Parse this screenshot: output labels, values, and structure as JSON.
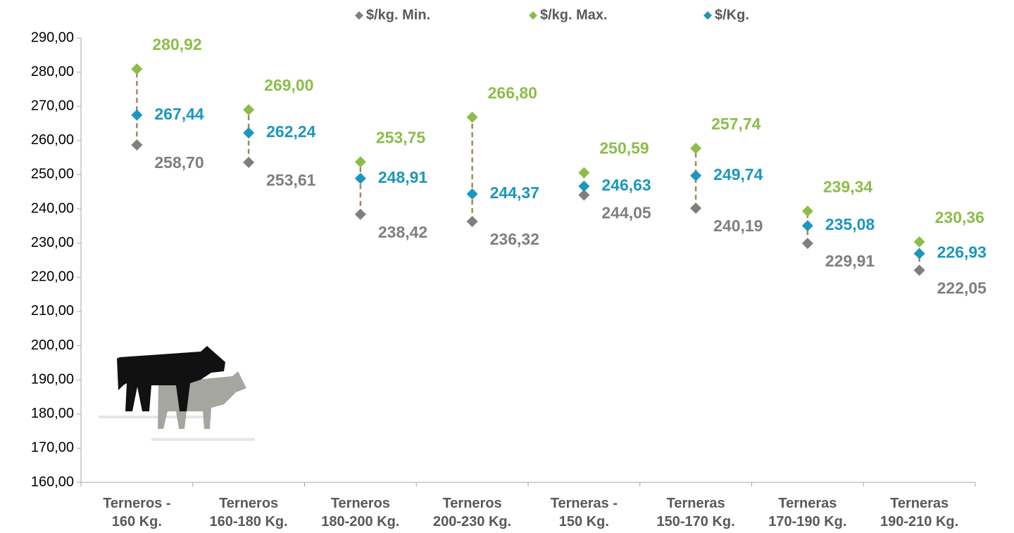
{
  "chart_data": {
    "type": "dot-range",
    "categories": [
      "Terneros -\n160 Kg.",
      "Terneros\n160-180 Kg.",
      "Terneros\n180-200 Kg.",
      "Terneros\n200-230 Kg.",
      "Terneras -\n150 Kg.",
      "Terneras\n150-170 Kg.",
      "Terneras\n170-190 Kg.",
      "Terneras\n190-210 Kg."
    ],
    "series": [
      {
        "name": "$/kg. Min.",
        "color": "#7f7f7f",
        "values": [
          258.7,
          253.61,
          238.42,
          236.32,
          244.05,
          240.19,
          229.91,
          222.05
        ],
        "value_labels": [
          "258,70",
          "253,61",
          "238,42",
          "236,32",
          "244,05",
          "240,19",
          "229,91",
          "222,05"
        ]
      },
      {
        "name": "$/kg. Max.",
        "color": "#8cbd4a",
        "values": [
          280.92,
          269.0,
          253.75,
          266.8,
          250.59,
          257.74,
          239.34,
          230.36
        ],
        "value_labels": [
          "280,92",
          "269,00",
          "253,75",
          "266,80",
          "250,59",
          "257,74",
          "239,34",
          "230,36"
        ]
      },
      {
        "name": "$/Kg.",
        "color": "#1b97bd",
        "values": [
          267.44,
          262.24,
          248.91,
          244.37,
          246.63,
          249.74,
          235.08,
          226.93
        ],
        "value_labels": [
          "267,44",
          "262,24",
          "248,91",
          "244,37",
          "246,63",
          "249,74",
          "235,08",
          "226,93"
        ]
      }
    ],
    "ylim": [
      160,
      290
    ],
    "yticks": [
      {
        "value": 160,
        "label": "160,00"
      },
      {
        "value": 170,
        "label": "170,00"
      },
      {
        "value": 180,
        "label": "180,00"
      },
      {
        "value": 190,
        "label": "190,00"
      },
      {
        "value": 200,
        "label": "200,00"
      },
      {
        "value": 210,
        "label": "210,00"
      },
      {
        "value": 220,
        "label": "220,00"
      },
      {
        "value": 230,
        "label": "230,00"
      },
      {
        "value": 240,
        "label": "240,00"
      },
      {
        "value": 250,
        "label": "250,00"
      },
      {
        "value": 260,
        "label": "260,00"
      },
      {
        "value": 270,
        "label": "270,00"
      },
      {
        "value": 280,
        "label": "280,00"
      },
      {
        "value": 290,
        "label": "290,00"
      }
    ],
    "legend": "top"
  }
}
